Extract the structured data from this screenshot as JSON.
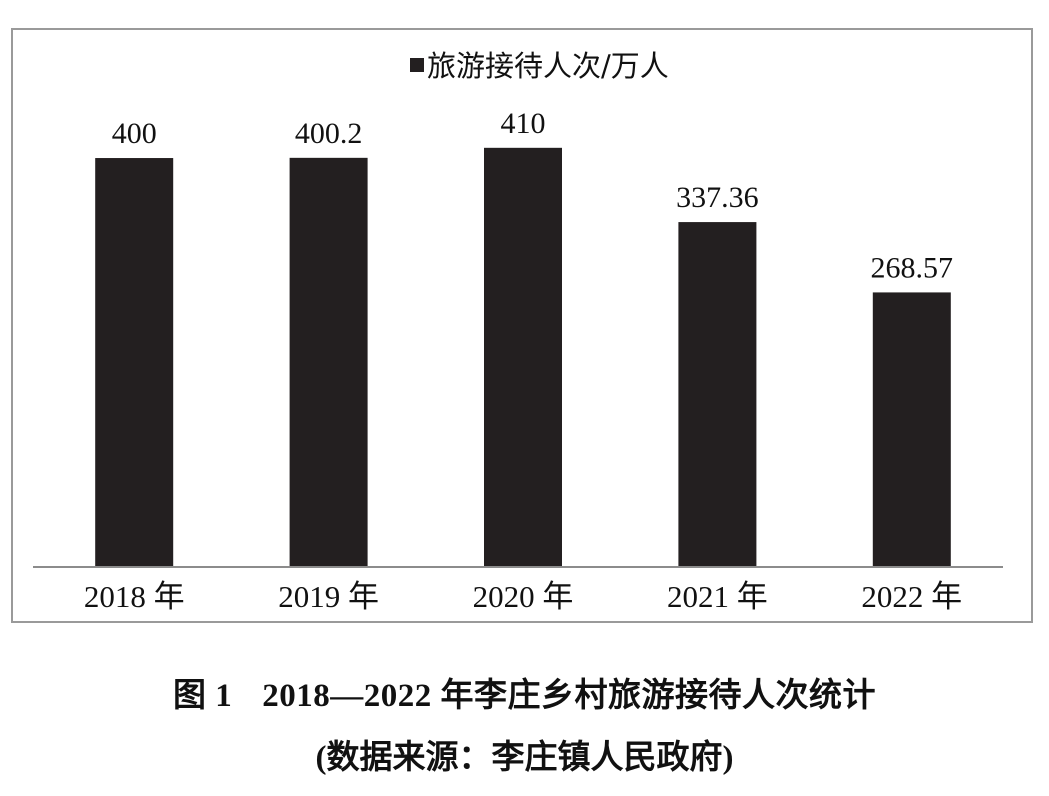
{
  "chart_data": {
    "type": "bar",
    "categories": [
      "2018 年",
      "2019 年",
      "2020 年",
      "2021 年",
      "2022 年"
    ],
    "series": [
      {
        "name": "旅游接待人次/万人",
        "values": [
          400,
          400.2,
          410,
          337.36,
          268.57
        ]
      }
    ],
    "data_labels": [
      "400",
      "400.2",
      "410",
      "337.36",
      "268.57"
    ],
    "ylim": [
      0,
      430
    ],
    "grid": false,
    "legend_position": "top-center",
    "colors": {
      "bar": "#231f20",
      "frame": "#9a9a9a",
      "axis": "#8c8c8c"
    }
  },
  "caption": {
    "figure_number": "图 1",
    "title": "2018—2022 年李庄乡村旅游接待人次统计",
    "source": "(数据来源：李庄镇人民政府)"
  }
}
